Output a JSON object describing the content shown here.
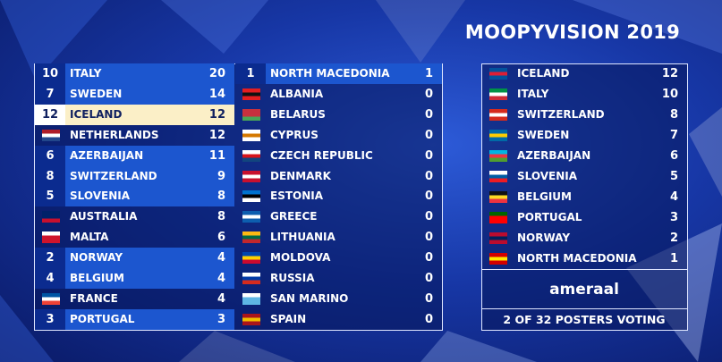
{
  "title": "MOOPYVISION 2019",
  "scoreboard": {
    "rows": [
      {
        "points": 10,
        "country": "ITALY",
        "total": 20
      },
      {
        "points": 7,
        "country": "SWEDEN",
        "total": 14
      },
      {
        "points": 12,
        "country": "ICELAND",
        "total": 12
      },
      {
        "country": "NETHERLANDS",
        "total": 12
      },
      {
        "points": 6,
        "country": "AZERBAIJAN",
        "total": 11
      },
      {
        "points": 8,
        "country": "SWITZERLAND",
        "total": 9
      },
      {
        "points": 5,
        "country": "SLOVENIA",
        "total": 8
      },
      {
        "country": "AUSTRALIA",
        "total": 8
      },
      {
        "country": "MALTA",
        "total": 6
      },
      {
        "points": 2,
        "country": "NORWAY",
        "total": 4
      },
      {
        "points": 4,
        "country": "BELGIUM",
        "total": 4
      },
      {
        "country": "FRANCE",
        "total": 4
      },
      {
        "points": 3,
        "country": "PORTUGAL",
        "total": 3
      },
      {
        "points": 1,
        "country": "NORTH MACEDONIA",
        "total": 1
      },
      {
        "country": "ALBANIA",
        "total": 0
      },
      {
        "country": "BELARUS",
        "total": 0
      },
      {
        "country": "CYPRUS",
        "total": 0
      },
      {
        "country": "CZECH REPUBLIC",
        "total": 0
      },
      {
        "country": "DENMARK",
        "total": 0
      },
      {
        "country": "ESTONIA",
        "total": 0
      },
      {
        "country": "GREECE",
        "total": 0
      },
      {
        "country": "LITHUANIA",
        "total": 0
      },
      {
        "country": "MOLDOVA",
        "total": 0
      },
      {
        "country": "RUSSIA",
        "total": 0
      },
      {
        "country": "SAN MARINO",
        "total": 0
      },
      {
        "country": "SPAIN",
        "total": 0
      }
    ]
  },
  "votes": {
    "rows": [
      {
        "country": "ICELAND",
        "points": 12
      },
      {
        "country": "ITALY",
        "points": 10
      },
      {
        "country": "SWITZERLAND",
        "points": 8
      },
      {
        "country": "SWEDEN",
        "points": 7
      },
      {
        "country": "AZERBAIJAN",
        "points": 6
      },
      {
        "country": "SLOVENIA",
        "points": 5
      },
      {
        "country": "BELGIUM",
        "points": 4
      },
      {
        "country": "PORTUGAL",
        "points": 3
      },
      {
        "country": "NORWAY",
        "points": 2
      },
      {
        "country": "NORTH MACEDONIA",
        "points": 1
      }
    ],
    "voter": "ameraal",
    "status": "2 OF 32 POSTERS VOTING"
  }
}
